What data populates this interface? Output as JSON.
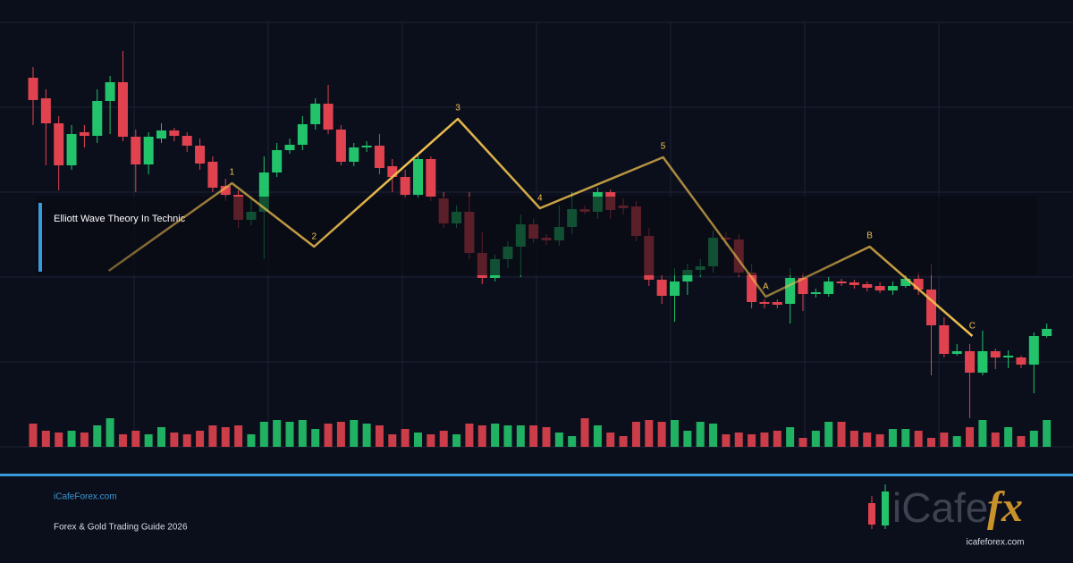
{
  "chart_data": {
    "type": "candlestick",
    "up_color": "#22c36b",
    "down_color": "#e0434f",
    "ylim": [
      0,
      475
    ],
    "open": [
      413,
      390,
      362,
      315,
      352,
      348,
      387,
      408,
      347,
      316,
      345,
      354,
      348,
      337,
      319,
      292,
      282,
      254,
      263,
      307,
      332,
      338,
      361,
      384,
      355,
      319,
      335,
      337,
      314,
      302,
      282,
      322,
      278,
      250,
      263,
      217,
      189,
      210,
      224,
      249,
      234,
      231,
      246,
      266,
      263,
      285,
      270,
      269,
      236,
      187,
      169,
      185,
      198,
      202,
      234,
      232,
      195,
      162,
      162,
      160,
      189,
      171,
      171,
      185,
      184,
      182,
      180,
      175,
      180,
      188,
      176,
      136,
      104,
      107,
      83,
      107,
      100,
      100,
      92,
      124
    ],
    "high": [
      425,
      400,
      370,
      360,
      360,
      400,
      415,
      443,
      355,
      352,
      362,
      357,
      352,
      345,
      325,
      300,
      287,
      280,
      325,
      340,
      345,
      370,
      390,
      405,
      360,
      340,
      342,
      350,
      322,
      310,
      328,
      325,
      285,
      270,
      285,
      240,
      215,
      230,
      260,
      255,
      238,
      270,
      285,
      270,
      290,
      288,
      278,
      275,
      245,
      192,
      200,
      205,
      210,
      242,
      240,
      238,
      205,
      165,
      165,
      200,
      195,
      177,
      190,
      188,
      187,
      185,
      184,
      185,
      192,
      195,
      205,
      145,
      115,
      115,
      130,
      110,
      108,
      102,
      128,
      138
    ],
    "low": [
      360,
      315,
      287,
      310,
      335,
      340,
      350,
      342,
      285,
      305,
      340,
      342,
      330,
      310,
      285,
      275,
      245,
      248,
      210,
      302,
      328,
      332,
      355,
      350,
      315,
      314,
      330,
      305,
      285,
      278,
      278,
      275,
      245,
      245,
      210,
      182,
      185,
      200,
      190,
      228,
      226,
      225,
      238,
      260,
      255,
      255,
      260,
      230,
      180,
      160,
      140,
      170,
      190,
      195,
      225,
      190,
      155,
      155,
      155,
      138,
      152,
      167,
      168,
      180,
      177,
      174,
      172,
      170,
      178,
      170,
      80,
      100,
      102,
      32,
      80,
      87,
      88,
      88,
      60,
      122
    ],
    "close": [
      388,
      362,
      315,
      350,
      348,
      387,
      408,
      347,
      316,
      347,
      354,
      348,
      337,
      317,
      290,
      282,
      254,
      263,
      307,
      332,
      338,
      361,
      384,
      355,
      319,
      335,
      337,
      312,
      302,
      282,
      322,
      280,
      250,
      263,
      217,
      189,
      210,
      224,
      249,
      233,
      231,
      246,
      266,
      263,
      285,
      265,
      267,
      236,
      187,
      169,
      185,
      198,
      202,
      234,
      232,
      195,
      162,
      160,
      159,
      189,
      171,
      173,
      185,
      183,
      181,
      178,
      175,
      180,
      188,
      176,
      136,
      104,
      107,
      83,
      107,
      100,
      102,
      92,
      124,
      132
    ],
    "volume": [
      26,
      18,
      16,
      18,
      16,
      24,
      32,
      14,
      18,
      14,
      22,
      16,
      14,
      18,
      24,
      22,
      24,
      14,
      28,
      30,
      28,
      30,
      20,
      26,
      28,
      30,
      26,
      24,
      14,
      20,
      16,
      14,
      18,
      14,
      26,
      24,
      26,
      24,
      24,
      24,
      22,
      16,
      12,
      32,
      24,
      16,
      12,
      28,
      30,
      28,
      30,
      18,
      28,
      26,
      14,
      16,
      14,
      16,
      18,
      22,
      10,
      18,
      28,
      28,
      18,
      16,
      14,
      20,
      20,
      18,
      10,
      16,
      12,
      22,
      30,
      16,
      22,
      12,
      18,
      30
    ],
    "wave": {
      "labels": [
        null,
        "1",
        "2",
        "3",
        "4",
        "5",
        "A",
        "B",
        "C"
      ],
      "x": [
        5.9,
        15.5,
        21.9,
        33.1,
        39.5,
        49.1,
        57.1,
        65.2,
        73.2
      ],
      "y": [
        197,
        295,
        224,
        367,
        267,
        324,
        168,
        224,
        124
      ],
      "color": "#f2c14e"
    },
    "banner": "Elliott Wave Theory In Technic"
  },
  "footer": {
    "site": "iCafeForex.com",
    "subtitle": "Forex & Gold Trading Guide 2026",
    "logo_left": "iCafe",
    "logo_right": "fx",
    "logo_url": "icafeforex.com"
  }
}
